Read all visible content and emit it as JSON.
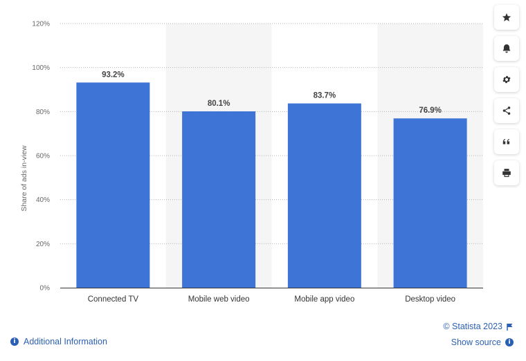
{
  "chart_data": {
    "type": "bar",
    "categories": [
      "Connected TV",
      "Mobile web video",
      "Mobile app video",
      "Desktop video"
    ],
    "values": [
      93.2,
      80.1,
      83.7,
      76.9
    ],
    "value_labels": [
      "93.2%",
      "80.1%",
      "83.7%",
      "76.9%"
    ],
    "ylabel": "Share of ads in-view",
    "ylim": [
      0,
      120
    ],
    "y_ticks": [
      0,
      20,
      40,
      60,
      80,
      100,
      120
    ],
    "y_tick_labels": [
      "0%",
      "20%",
      "40%",
      "60%",
      "80%",
      "100%",
      "120%"
    ],
    "grid": true,
    "bar_color": "#3e74d6",
    "band_color": "#f5f5f5"
  },
  "toolbar": {
    "buttons": [
      "star-icon",
      "bell-icon",
      "gear-icon",
      "share-icon",
      "quote-icon",
      "print-icon"
    ]
  },
  "footer": {
    "credit": "© Statista 2023",
    "show_source": "Show source",
    "additional_info": "Additional Information"
  },
  "colors": {
    "link": "#2b5fb4",
    "bar": "#3e74d6"
  }
}
